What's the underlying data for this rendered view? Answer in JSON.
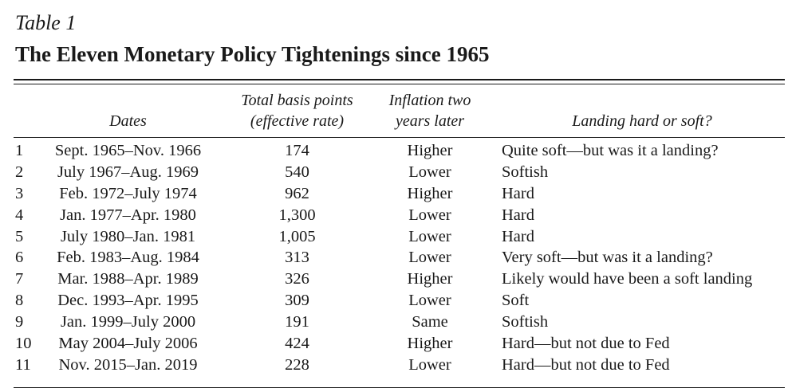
{
  "table": {
    "label": "Table 1",
    "title": "The Eleven Monetary Policy Tightenings since 1965",
    "headers": {
      "dates": "Dates",
      "basis_points_line1": "Total basis points",
      "basis_points_line2": "(effective rate)",
      "inflation_line1": "Inflation two",
      "inflation_line2": "years later",
      "landing": "Landing hard or soft?"
    },
    "rows": [
      {
        "num": "1",
        "dates": "Sept. 1965–Nov. 1966",
        "basis_points": "174",
        "inflation": "Higher",
        "landing": "Quite soft—but was it a landing?"
      },
      {
        "num": "2",
        "dates": "July 1967–Aug. 1969",
        "basis_points": "540",
        "inflation": "Lower",
        "landing": "Softish"
      },
      {
        "num": "3",
        "dates": "Feb. 1972–July 1974",
        "basis_points": "962",
        "inflation": "Higher",
        "landing": "Hard"
      },
      {
        "num": "4",
        "dates": "Jan. 1977–Apr. 1980",
        "basis_points": "1,300",
        "inflation": "Lower",
        "landing": "Hard"
      },
      {
        "num": "5",
        "dates": "July 1980–Jan. 1981",
        "basis_points": "1,005",
        "inflation": "Lower",
        "landing": "Hard"
      },
      {
        "num": "6",
        "dates": "Feb. 1983–Aug. 1984",
        "basis_points": "313",
        "inflation": "Lower",
        "landing": "Very soft—but was it a landing?"
      },
      {
        "num": "7",
        "dates": "Mar. 1988–Apr. 1989",
        "basis_points": "326",
        "inflation": "Higher",
        "landing": "Likely would have been a soft landing"
      },
      {
        "num": "8",
        "dates": "Dec. 1993–Apr. 1995",
        "basis_points": "309",
        "inflation": "Lower",
        "landing": "Soft"
      },
      {
        "num": "9",
        "dates": "Jan. 1999–July 2000",
        "basis_points": "191",
        "inflation": "Same",
        "landing": "Softish"
      },
      {
        "num": "10",
        "dates": "May 2004–July 2006",
        "basis_points": "424",
        "inflation": "Higher",
        "landing": "Hard—but not due to Fed"
      },
      {
        "num": "11",
        "dates": "Nov. 2015–Jan. 2019",
        "basis_points": "228",
        "inflation": "Lower",
        "landing": "Hard—but not due to Fed"
      }
    ]
  }
}
